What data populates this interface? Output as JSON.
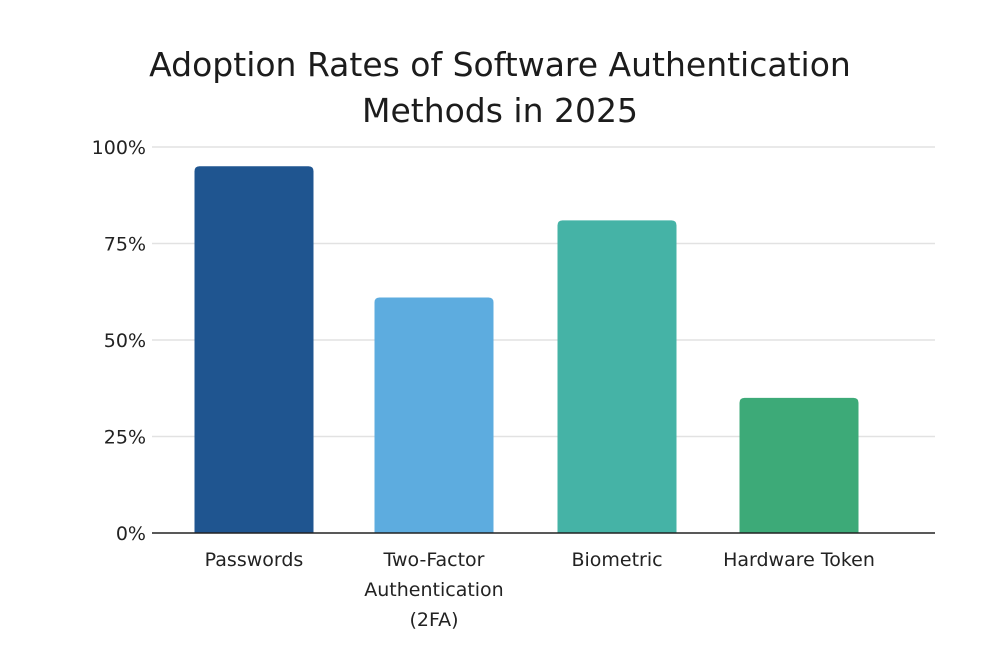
{
  "chart_data": {
    "type": "bar",
    "title_lines": [
      "Adoption Rates of Software Authentication",
      "Methods in 2025"
    ],
    "categories": [
      [
        "Passwords"
      ],
      [
        "Two-Factor",
        "Authentication",
        "(2FA)"
      ],
      [
        "Biometric"
      ],
      [
        "Hardware Token"
      ]
    ],
    "values": [
      95,
      61,
      81,
      35
    ],
    "colors": [
      "#1f5590",
      "#5dacdf",
      "#45b3a6",
      "#3daa78"
    ],
    "ylim": [
      0,
      100
    ],
    "yticks": [
      0,
      25,
      50,
      75,
      100
    ],
    "ytick_labels": [
      "0%",
      "25%",
      "50%",
      "75%",
      "100%"
    ],
    "grid": true,
    "xlabel": "",
    "ylabel": ""
  }
}
